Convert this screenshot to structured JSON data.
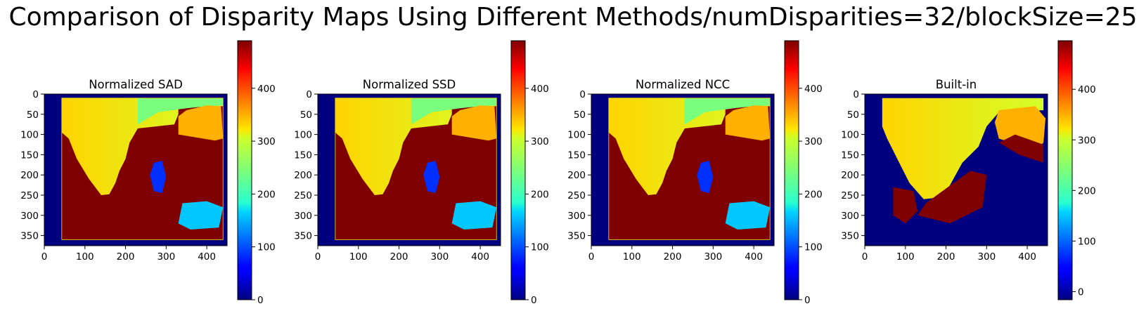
{
  "chart_data": {
    "title": "Comparison of Disparity Maps Using Different Methods/numDisparities=32/blockSize=25",
    "type": "heatmap",
    "colormap": "jet",
    "panels": [
      {
        "title": "Normalized SAD",
        "xlim": [
          0,
          450
        ],
        "ylim": [
          375,
          0
        ],
        "xticks": [
          "0",
          "100",
          "200",
          "300",
          "400"
        ],
        "yticks": [
          "0",
          "50",
          "100",
          "150",
          "200",
          "250",
          "300",
          "350"
        ],
        "colorbar": {
          "range": [
            0,
            490
          ],
          "ticks": [
            "0",
            "100",
            "200",
            "300",
            "400"
          ]
        }
      },
      {
        "title": "Normalized SSD",
        "xlim": [
          0,
          450
        ],
        "ylim": [
          375,
          0
        ],
        "xticks": [
          "0",
          "100",
          "200",
          "300",
          "400"
        ],
        "yticks": [
          "0",
          "50",
          "100",
          "150",
          "200",
          "250",
          "300",
          "350"
        ],
        "colorbar": {
          "range": [
            0,
            490
          ],
          "ticks": [
            "0",
            "100",
            "200",
            "300",
            "400"
          ]
        }
      },
      {
        "title": "Normalized NCC",
        "xlim": [
          0,
          450
        ],
        "ylim": [
          375,
          0
        ],
        "xticks": [
          "0",
          "100",
          "200",
          "300",
          "400"
        ],
        "yticks": [
          "0",
          "50",
          "100",
          "150",
          "200",
          "250",
          "300",
          "350"
        ],
        "colorbar": {
          "range": [
            0,
            490
          ],
          "ticks": [
            "0",
            "100",
            "200",
            "300",
            "400"
          ]
        }
      },
      {
        "title": "Built-in",
        "xlim": [
          0,
          450
        ],
        "ylim": [
          375,
          0
        ],
        "xticks": [
          "0",
          "100",
          "200",
          "300",
          "400"
        ],
        "yticks": [
          "0",
          "50",
          "100",
          "150",
          "200",
          "250",
          "300",
          "350"
        ],
        "colorbar": {
          "range": [
            -16,
            496
          ],
          "ticks": [
            "0",
            "100",
            "200",
            "300",
            "400"
          ]
        }
      }
    ]
  }
}
